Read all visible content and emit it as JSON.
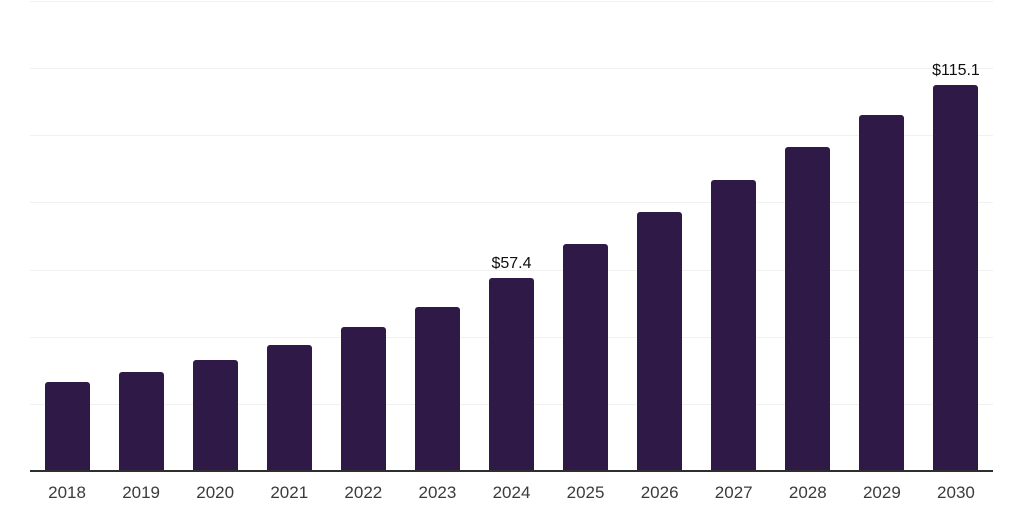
{
  "chart_data": {
    "type": "bar",
    "title": "",
    "xlabel": "",
    "ylabel": "",
    "categories": [
      "2018",
      "2019",
      "2020",
      "2021",
      "2022",
      "2023",
      "2024",
      "2025",
      "2026",
      "2027",
      "2028",
      "2029",
      "2030"
    ],
    "values": [
      26.5,
      29.4,
      33.0,
      37.5,
      42.8,
      49.0,
      57.4,
      67.5,
      77.3,
      86.8,
      96.6,
      106.1,
      115.1
    ],
    "data_labels": {
      "2024": "$57.4",
      "2030": "$115.1"
    },
    "ylim": [
      0,
      140
    ],
    "grid_step": 20,
    "grid": true,
    "legend": "none",
    "colors": {
      "bar": "#2f1a47",
      "gridline": "#f1f1f3",
      "axis_line": "#2e2e2e",
      "tick_label": "#3b3b3b",
      "data_label": "#101010",
      "background": "#ffffff"
    }
  }
}
